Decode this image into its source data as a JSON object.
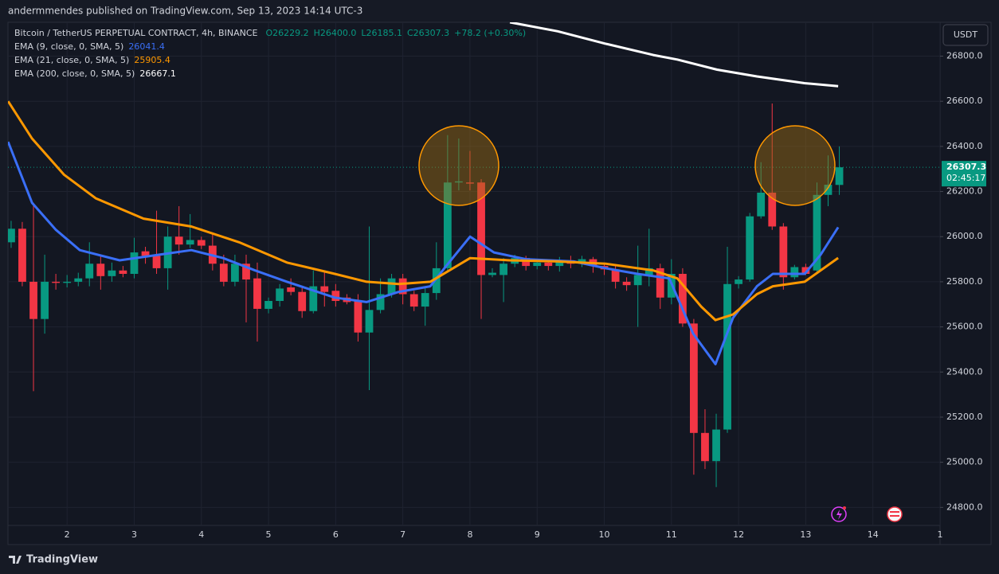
{
  "chart_data": {
    "type": "candlestick",
    "published": "andermmendes published on TradingView.com, Sep 13, 2023 14:14 UTC-3",
    "symbol": "Bitcoin / TetherUS PERPETUAL CONTRACT, 4h, BINANCE",
    "legend_values": [
      "O26229.2",
      "H26400.0",
      "L26185.1",
      "C26307.3",
      "+78.2 (+0.30%)"
    ],
    "currency": "USDT",
    "countdown": "02:45:17",
    "footer": "TradingView",
    "candles": {
      "up_color": "#089981",
      "down_color": "#f23645",
      "x": [
        1.167,
        1.333,
        1.5,
        1.667,
        1.833,
        2,
        2.167,
        2.333,
        2.5,
        2.667,
        2.833,
        3,
        3.167,
        3.333,
        3.5,
        3.667,
        3.833,
        4,
        4.167,
        4.333,
        4.5,
        4.667,
        4.833,
        5,
        5.167,
        5.333,
        5.5,
        5.667,
        5.833,
        6,
        6.167,
        6.333,
        6.5,
        6.667,
        6.833,
        7,
        7.167,
        7.333,
        7.5,
        7.667,
        7.833,
        8,
        8.167,
        8.333,
        8.5,
        8.667,
        8.833,
        9,
        9.167,
        9.333,
        9.5,
        9.667,
        9.833,
        10,
        10.167,
        10.333,
        10.5,
        10.667,
        10.833,
        11,
        11.167,
        11.333,
        11.5,
        11.667,
        11.833,
        12,
        12.167,
        12.333,
        12.5,
        12.667,
        12.833,
        13,
        13.167,
        13.333,
        13.5
      ],
      "open": [
        25975,
        26035,
        25800,
        25635,
        25800,
        25795,
        25800,
        25815,
        25880,
        25825,
        25850,
        25835,
        25935,
        25915,
        25860,
        26000,
        25965,
        25985,
        25960,
        25880,
        25800,
        25880,
        25815,
        25680,
        25715,
        25775,
        25755,
        25670,
        25780,
        25760,
        25730,
        25715,
        25575,
        25675,
        25745,
        25815,
        25745,
        25690,
        25750,
        25860,
        26240,
        26240,
        26240,
        25830,
        25830,
        25880,
        25905,
        25870,
        25885,
        25870,
        25895,
        25880,
        25900,
        25870,
        25855,
        25800,
        25785,
        25830,
        25860,
        25730,
        25835,
        25615,
        25130,
        25005,
        25145,
        25790,
        25810,
        26090,
        26195,
        26045,
        25820,
        25865,
        25850,
        26185,
        26229.2
      ],
      "high": [
        26070,
        26065,
        26150,
        25920,
        25835,
        25830,
        25840,
        25975,
        25920,
        25885,
        25870,
        25995,
        25955,
        26115,
        26045,
        26135,
        26100,
        26000,
        26010,
        25920,
        25920,
        25920,
        25885,
        25730,
        25790,
        25815,
        25780,
        25850,
        25850,
        25790,
        25745,
        25745,
        26045,
        25815,
        25835,
        25835,
        25760,
        25775,
        25975,
        26450,
        26435,
        26380,
        26255,
        25860,
        25905,
        25920,
        25915,
        25900,
        25900,
        25910,
        25915,
        25915,
        25910,
        25885,
        25870,
        25820,
        25960,
        26035,
        25880,
        25900,
        25860,
        25635,
        25235,
        25215,
        25955,
        25825,
        26105,
        26330,
        26590,
        26060,
        25875,
        25880,
        26240,
        26360,
        26400.0
      ],
      "low": [
        25950,
        25780,
        25315,
        25570,
        25765,
        25775,
        25780,
        25780,
        25765,
        25800,
        25820,
        25815,
        25880,
        25835,
        25765,
        25920,
        25950,
        25945,
        25850,
        25780,
        25780,
        25620,
        25535,
        25660,
        25690,
        25740,
        25640,
        25660,
        25690,
        25690,
        25700,
        25535,
        25320,
        25660,
        25730,
        25700,
        25670,
        25605,
        25720,
        25850,
        26205,
        26205,
        25635,
        25820,
        25710,
        25865,
        25850,
        25855,
        25850,
        25845,
        25860,
        25865,
        25840,
        25830,
        25770,
        25760,
        25600,
        25780,
        25680,
        25700,
        25600,
        24945,
        24970,
        24890,
        25130,
        25770,
        25800,
        26080,
        26030,
        25765,
        25810,
        25830,
        25835,
        26135,
        26185.1
      ],
      "close": [
        26035,
        25800,
        25635,
        25800,
        25795,
        25800,
        25815,
        25880,
        25825,
        25850,
        25835,
        25930,
        25915,
        25860,
        26000,
        25965,
        25985,
        25960,
        25880,
        25800,
        25880,
        25810,
        25680,
        25715,
        25770,
        25755,
        25670,
        25780,
        25755,
        25715,
        25710,
        25575,
        25675,
        25745,
        25815,
        25745,
        25690,
        25750,
        25860,
        26240,
        26245,
        26235,
        25830,
        25840,
        25880,
        25905,
        25870,
        25885,
        25870,
        25895,
        25880,
        25900,
        25870,
        25855,
        25800,
        25785,
        25830,
        25860,
        25730,
        25835,
        25615,
        25130,
        25005,
        25145,
        25790,
        25810,
        26090,
        26195,
        26045,
        25820,
        25865,
        25835,
        26185,
        26230,
        26307.3
      ]
    },
    "series": [
      {
        "name": "EMA (9, close, 0, SMA, 5)",
        "color": "#3a6ff7",
        "x": [
          1.122,
          1.478,
          1.834,
          2.19,
          2.783,
          3.376,
          3.851,
          4.325,
          4.8,
          5.274,
          5.986,
          6.46,
          6.935,
          7.409,
          7.646,
          8.002,
          8.358,
          8.833,
          9.544,
          10.019,
          10.493,
          10.968,
          11.324,
          11.656,
          11.917,
          12.273,
          12.51,
          12.985,
          13.222,
          13.483
        ],
        "values": [
          26420,
          26150,
          26030,
          25940,
          25895,
          25920,
          25940,
          25905,
          25850,
          25800,
          25730,
          25710,
          25755,
          25780,
          25870,
          26000,
          25930,
          25900,
          25890,
          25860,
          25835,
          25815,
          25570,
          25435,
          25640,
          25780,
          25835,
          25835,
          25920,
          26041.4
        ]
      },
      {
        "name": "EMA (21, close, 0, SMA, 5)",
        "color": "#ff9800",
        "x": [
          1.122,
          1.478,
          1.953,
          2.427,
          3.139,
          3.851,
          4.562,
          5.274,
          5.986,
          6.46,
          6.935,
          7.409,
          8.002,
          8.595,
          9.307,
          10.019,
          10.731,
          11.087,
          11.443,
          11.656,
          11.917,
          12.273,
          12.51,
          12.985,
          13.483
        ],
        "values": [
          26600,
          26435,
          26275,
          26170,
          26080,
          26045,
          25975,
          25885,
          25835,
          25800,
          25790,
          25800,
          25905,
          25895,
          25890,
          25880,
          25850,
          25815,
          25690,
          25630,
          25655,
          25745,
          25780,
          25800,
          25905.4
        ]
      },
      {
        "name": "EMA (200, close, 0, SMA, 5)",
        "color": "#ffffff",
        "x": [
          8.595,
          9.307,
          10.019,
          10.731,
          11.087,
          11.68,
          12.273,
          12.985,
          13.483
        ],
        "values": [
          26950,
          26910,
          26855,
          26805,
          26785,
          26740,
          26710,
          26680,
          26667.1
        ]
      }
    ],
    "xlim": [
      1.12,
      15.0
    ],
    "xticks": [
      2,
      3,
      4,
      5,
      6,
      7,
      8,
      9,
      10,
      11,
      12,
      13,
      14,
      {
        "value": 15,
        "label": "1"
      }
    ],
    "ylim": [
      24720,
      26950
    ],
    "yticks": [
      {
        "value": 24800,
        "label": "24800.0"
      },
      {
        "value": 25000,
        "label": "25000.0"
      },
      {
        "value": 25200,
        "label": "25200.0"
      },
      {
        "value": 25400,
        "label": "25400.0"
      },
      {
        "value": 25600,
        "label": "25600.0"
      },
      {
        "value": 25800,
        "label": "25800.0"
      },
      {
        "value": 26000,
        "label": "26000.0"
      },
      {
        "value": 26200,
        "label": "26200.0"
      },
      {
        "value": 26400,
        "label": "26400.0"
      },
      {
        "value": 26600,
        "label": "26600.0"
      },
      {
        "value": 26800,
        "label": "26800.0"
      }
    ],
    "grid": true
  }
}
